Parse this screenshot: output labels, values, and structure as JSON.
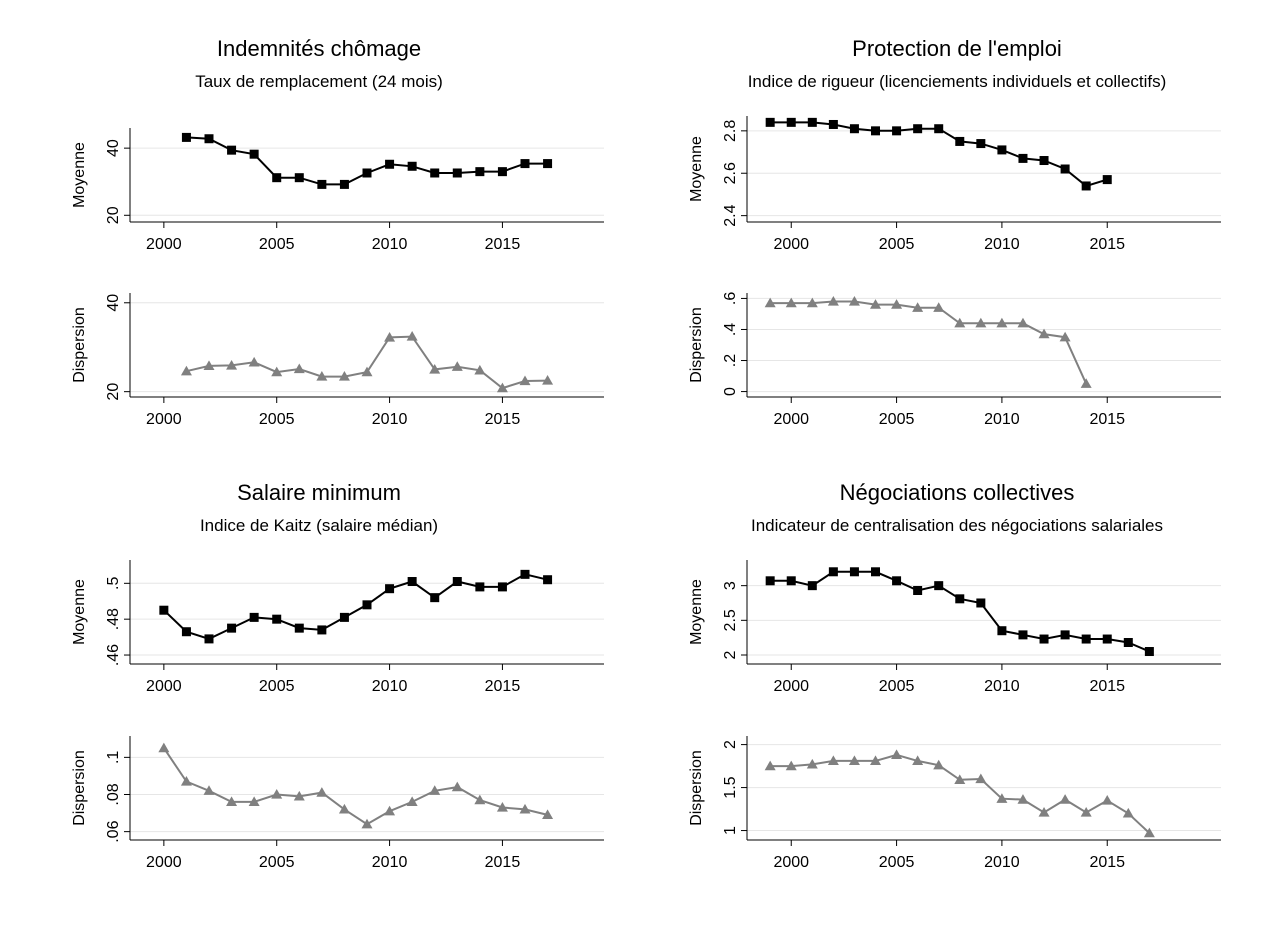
{
  "chart_data": [
    {
      "type": "line",
      "title": "Indemnités chômage",
      "subtitle": "Taux de remplacement (24 mois)",
      "xlim": [
        1998.5,
        2019.5
      ],
      "xticks": [
        "2000",
        "2005",
        "2010",
        "2015"
      ],
      "grid": true,
      "subplots": [
        {
          "ylabel": "Moyenne",
          "ylim": [
            18,
            46
          ],
          "yticks": [
            "20",
            "40"
          ],
          "series": [
            {
              "marker": "square",
              "color": "#000000",
              "x": [
                2001,
                2002,
                2003,
                2004,
                2005,
                2006,
                2007,
                2008,
                2009,
                2010,
                2011,
                2012,
                2013,
                2014,
                2015,
                2016,
                2017
              ],
              "values": [
                43.2,
                42.8,
                39.4,
                38.2,
                31.2,
                31.2,
                29.2,
                29.2,
                32.6,
                35.2,
                34.6,
                32.6,
                32.6,
                33.0,
                33.0,
                35.4,
                35.4
              ]
            }
          ]
        },
        {
          "ylabel": "Dispersion",
          "ylim": [
            18.8,
            42.2
          ],
          "yticks": [
            "20",
            "40"
          ],
          "series": [
            {
              "marker": "triangle",
              "color": "#808080",
              "x": [
                2001,
                2002,
                2003,
                2004,
                2005,
                2006,
                2007,
                2008,
                2009,
                2010,
                2011,
                2012,
                2013,
                2014,
                2015,
                2016,
                2017
              ],
              "values": [
                24.6,
                25.8,
                25.9,
                26.6,
                24.4,
                25.1,
                23.4,
                23.4,
                24.4,
                32.2,
                32.4,
                25.0,
                25.6,
                24.8,
                20.8,
                22.4,
                22.5
              ]
            }
          ]
        }
      ]
    },
    {
      "type": "line",
      "title": "Protection de l'emploi",
      "subtitle": "Indice de rigueur (licenciements individuels et collectifs)",
      "xlim": [
        1997.9,
        2020.4
      ],
      "xticks": [
        "2000",
        "2005",
        "2010",
        "2015"
      ],
      "grid": true,
      "subplots": [
        {
          "ylabel": "Moyenne",
          "ylim": [
            2.37,
            2.87
          ],
          "yticks": [
            "2.4",
            "2.6",
            "2.8"
          ],
          "series": [
            {
              "marker": "square",
              "color": "#000000",
              "x": [
                1999,
                2000,
                2001,
                2002,
                2003,
                2004,
                2005,
                2006,
                2007,
                2008,
                2009,
                2010,
                2011,
                2012,
                2013,
                2014,
                2015
              ],
              "values": [
                2.84,
                2.84,
                2.84,
                2.83,
                2.81,
                2.8,
                2.8,
                2.81,
                2.81,
                2.75,
                2.74,
                2.71,
                2.67,
                2.66,
                2.62,
                2.54,
                2.57
              ]
            }
          ]
        },
        {
          "ylabel": "Dispersion",
          "ylim": [
            -0.035,
            0.635
          ],
          "yticks": [
            "0",
            ".2",
            ".4",
            ".6"
          ],
          "series": [
            {
              "marker": "triangle",
              "color": "#808080",
              "x": [
                1999,
                2000,
                2001,
                2002,
                2003,
                2004,
                2005,
                2006,
                2007,
                2008,
                2009,
                2010,
                2011,
                2012,
                2013,
                2014
              ],
              "values": [
                0.57,
                0.57,
                0.57,
                0.58,
                0.58,
                0.56,
                0.56,
                0.54,
                0.54,
                0.44,
                0.44,
                0.44,
                0.44,
                0.37,
                0.35,
                0.05
              ]
            }
          ]
        }
      ]
    },
    {
      "type": "line",
      "title": "Salaire minimum",
      "subtitle": "Indice de Kaitz (salaire médian)",
      "xlim": [
        1998.5,
        2019.5
      ],
      "xticks": [
        "2000",
        "2005",
        "2010",
        "2015"
      ],
      "grid": true,
      "subplots": [
        {
          "ylabel": "Moyenne",
          "ylim": [
            0.455,
            0.513
          ],
          "yticks": [
            ".46",
            ".48",
            ".5"
          ],
          "series": [
            {
              "marker": "square",
              "color": "#000000",
              "x": [
                2000,
                2001,
                2002,
                2003,
                2004,
                2005,
                2006,
                2007,
                2008,
                2009,
                2010,
                2011,
                2012,
                2013,
                2014,
                2015,
                2016,
                2017
              ],
              "values": [
                0.485,
                0.473,
                0.469,
                0.475,
                0.481,
                0.48,
                0.475,
                0.474,
                0.481,
                0.488,
                0.497,
                0.501,
                0.492,
                0.501,
                0.498,
                0.498,
                0.505,
                0.502
              ]
            }
          ]
        },
        {
          "ylabel": "Dispersion",
          "ylim": [
            0.0555,
            0.1115
          ],
          "yticks": [
            ".06",
            ".08",
            ".1"
          ],
          "series": [
            {
              "marker": "triangle",
              "color": "#808080",
              "x": [
                2000,
                2001,
                2002,
                2003,
                2004,
                2005,
                2006,
                2007,
                2008,
                2009,
                2010,
                2011,
                2012,
                2013,
                2014,
                2015,
                2016,
                2017
              ],
              "values": [
                0.105,
                0.087,
                0.082,
                0.076,
                0.076,
                0.08,
                0.079,
                0.081,
                0.072,
                0.064,
                0.071,
                0.076,
                0.082,
                0.084,
                0.077,
                0.073,
                0.072,
                0.069
              ]
            }
          ]
        }
      ]
    },
    {
      "type": "line",
      "title": "Négociations collectives",
      "subtitle": "Indicateur de centralisation des négociations salariales",
      "xlim": [
        1997.9,
        2020.4
      ],
      "xticks": [
        "2000",
        "2005",
        "2010",
        "2015"
      ],
      "grid": true,
      "subplots": [
        {
          "ylabel": "Moyenne",
          "ylim": [
            1.87,
            3.37
          ],
          "yticks": [
            "2",
            "2.5",
            "3"
          ],
          "series": [
            {
              "marker": "square",
              "color": "#000000",
              "x": [
                1999,
                2000,
                2001,
                2002,
                2003,
                2004,
                2005,
                2006,
                2007,
                2008,
                2009,
                2010,
                2011,
                2012,
                2013,
                2014,
                2015,
                2016,
                2017
              ],
              "values": [
                3.07,
                3.07,
                3.0,
                3.2,
                3.2,
                3.2,
                3.07,
                2.93,
                3.0,
                2.81,
                2.75,
                2.35,
                2.29,
                2.23,
                2.29,
                2.23,
                2.23,
                2.18,
                2.05
              ]
            }
          ]
        },
        {
          "ylabel": "Dispersion",
          "ylim": [
            0.89,
            2.1
          ],
          "yticks": [
            "1",
            "1.5",
            "2"
          ],
          "series": [
            {
              "marker": "triangle",
              "color": "#808080",
              "x": [
                1999,
                2000,
                2001,
                2002,
                2003,
                2004,
                2005,
                2006,
                2007,
                2008,
                2009,
                2010,
                2011,
                2012,
                2013,
                2014,
                2015,
                2016,
                2017
              ],
              "values": [
                1.75,
                1.75,
                1.77,
                1.81,
                1.81,
                1.81,
                1.88,
                1.81,
                1.76,
                1.59,
                1.6,
                1.37,
                1.36,
                1.21,
                1.36,
                1.21,
                1.35,
                1.2,
                0.97
              ]
            }
          ]
        }
      ]
    }
  ]
}
